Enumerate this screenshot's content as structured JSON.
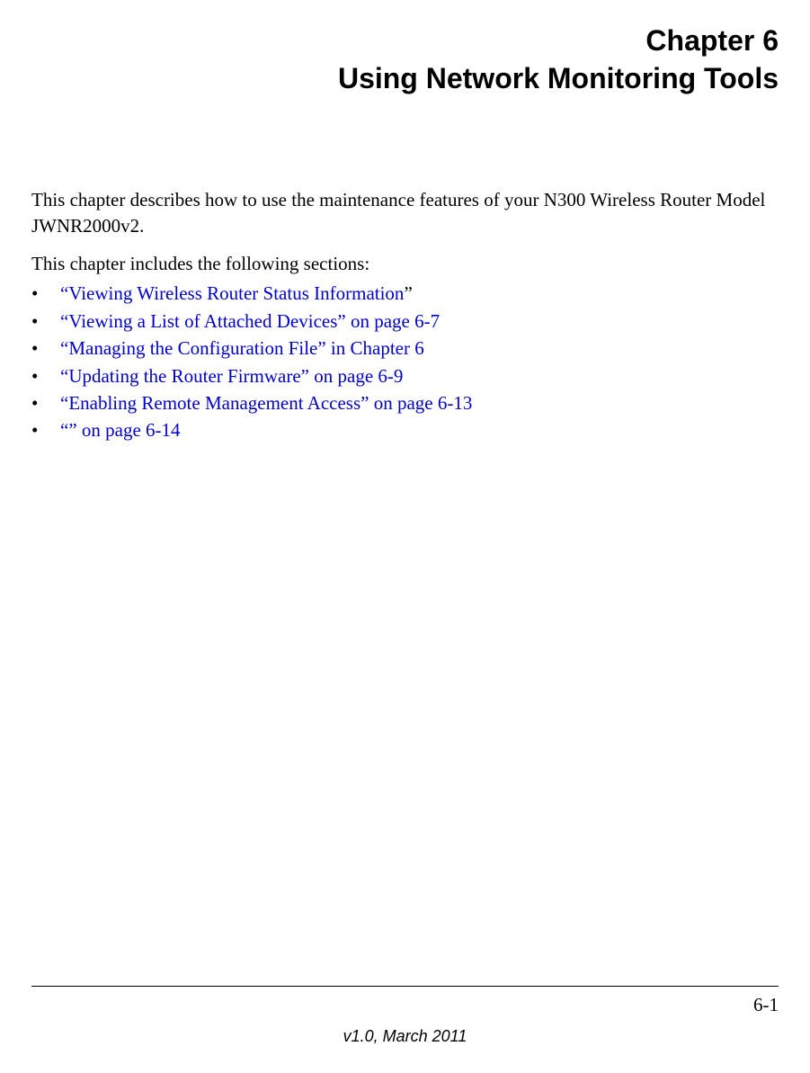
{
  "chapter": {
    "number": "Chapter 6",
    "title": "Using Network Monitoring Tools"
  },
  "intro": "This chapter describes how to use the maintenance features of your N300 Wireless Router Model JWNR2000v2.",
  "sectionsIntro": "This chapter includes the following sections:",
  "bullets": [
    {
      "link": "“Viewing Wireless Router Status Information",
      "suffix": "”"
    },
    {
      "link": "“Viewing a List of Attached Devices” on page 6-7",
      "suffix": ""
    },
    {
      "link": "“Managing the Configuration File” in Chapter 6",
      "suffix": ""
    },
    {
      "link": "“Updating the Router Firmware” on page 6-9",
      "suffix": ""
    },
    {
      "link": "“Enabling Remote Management Access” on page 6-13",
      "suffix": ""
    },
    {
      "link": "“” on page 6-14",
      "suffix": ""
    }
  ],
  "footer": {
    "pageNumber": "6-1",
    "version": "v1.0, March 2011"
  },
  "colors": {
    "linkColor": "#0000cc",
    "textColor": "#000000",
    "backgroundColor": "#ffffff"
  },
  "typography": {
    "headingFont": "Arial",
    "bodyFont": "Times New Roman",
    "headingSize": 32,
    "bodySize": 21,
    "footerSize": 18
  }
}
